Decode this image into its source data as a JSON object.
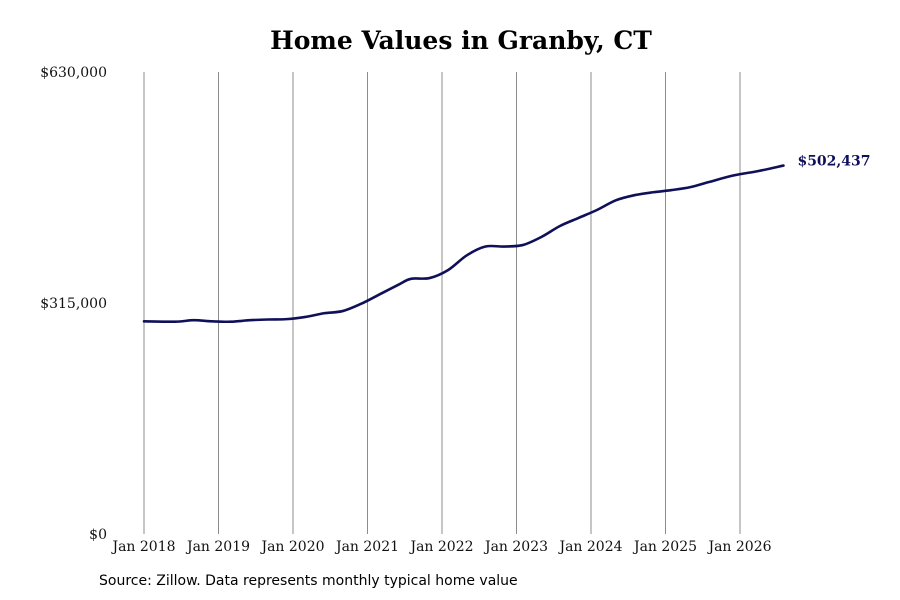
{
  "chart_data": {
    "type": "line",
    "title": "Home Values in Granby, CT",
    "xlabel": "",
    "ylabel": "",
    "x_ticks": [
      "Jan 2018",
      "Jan 2019",
      "Jan 2020",
      "Jan 2021",
      "Jan 2022",
      "Jan 2023",
      "Jan 2024",
      "Jan 2025",
      "Jan 2026"
    ],
    "y_ticks": [
      "$0",
      "$315,000",
      "$630,000"
    ],
    "ylim": [
      0,
      630000
    ],
    "xlim": [
      "2018-01",
      "2026-09"
    ],
    "grid": "vertical",
    "series": [
      {
        "name": "",
        "color": "#10105a",
        "points": [
          {
            "x": "2018-01",
            "y": 290000
          },
          {
            "x": "2018-06",
            "y": 289500
          },
          {
            "x": "2018-09",
            "y": 291500
          },
          {
            "x": "2018-12",
            "y": 290000
          },
          {
            "x": "2019-03",
            "y": 289500
          },
          {
            "x": "2019-06",
            "y": 291500
          },
          {
            "x": "2019-09",
            "y": 292500
          },
          {
            "x": "2019-12",
            "y": 293000
          },
          {
            "x": "2020-03",
            "y": 296000
          },
          {
            "x": "2020-06",
            "y": 301000
          },
          {
            "x": "2020-09",
            "y": 304000
          },
          {
            "x": "2020-12",
            "y": 314000
          },
          {
            "x": "2021-03",
            "y": 327000
          },
          {
            "x": "2021-06",
            "y": 340000
          },
          {
            "x": "2021-08",
            "y": 348000
          },
          {
            "x": "2021-11",
            "y": 349000
          },
          {
            "x": "2022-02",
            "y": 360000
          },
          {
            "x": "2022-05",
            "y": 380000
          },
          {
            "x": "2022-08",
            "y": 392000
          },
          {
            "x": "2022-11",
            "y": 392000
          },
          {
            "x": "2023-02",
            "y": 394000
          },
          {
            "x": "2023-05",
            "y": 405000
          },
          {
            "x": "2023-08",
            "y": 420000
          },
          {
            "x": "2023-11",
            "y": 431000
          },
          {
            "x": "2024-02",
            "y": 442000
          },
          {
            "x": "2024-05",
            "y": 455000
          },
          {
            "x": "2024-08",
            "y": 462000
          },
          {
            "x": "2024-11",
            "y": 466000
          },
          {
            "x": "2025-02",
            "y": 469000
          },
          {
            "x": "2025-05",
            "y": 473000
          },
          {
            "x": "2025-08",
            "y": 480000
          },
          {
            "x": "2025-12",
            "y": 489000
          },
          {
            "x": "2026-04",
            "y": 495000
          },
          {
            "x": "2026-08",
            "y": 502437
          }
        ]
      }
    ],
    "end_label": "$502,437"
  },
  "source_note": "Source: Zillow. Data represents monthly typical home value"
}
